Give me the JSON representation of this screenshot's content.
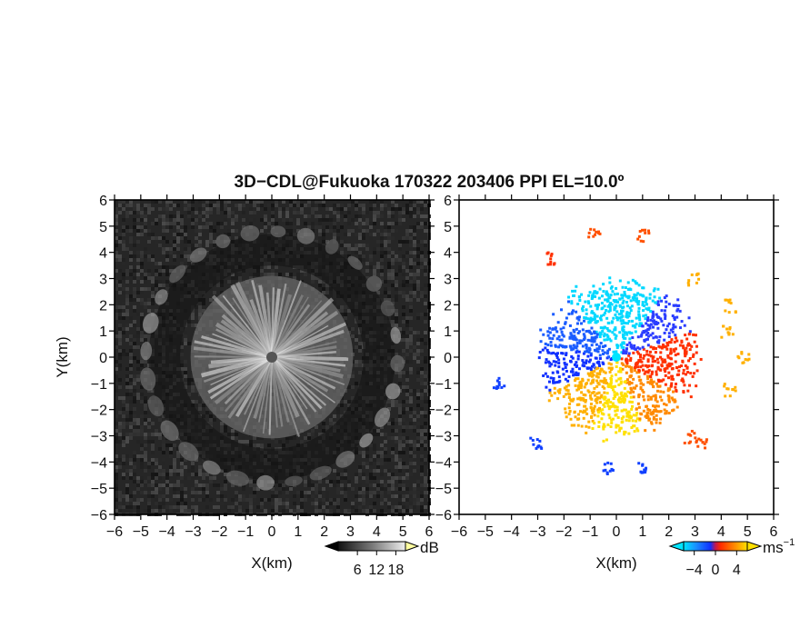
{
  "title": "3D−CDL@Fukuoka 170322 203406 PPI EL=10.0º",
  "chart_data": [
    {
      "type": "heatmap",
      "panel": "left",
      "quantity": "SNR",
      "colormap": "grayscale",
      "xlabel": "X(km)",
      "ylabel": "Y(km)",
      "xlim": [
        -6,
        6
      ],
      "ylim": [
        -6,
        6
      ],
      "xticks": [
        -6,
        -5,
        -4,
        -3,
        -2,
        -1,
        0,
        1,
        2,
        3,
        4,
        5,
        6
      ],
      "yticks": [
        -6,
        -5,
        -4,
        -3,
        -2,
        -1,
        0,
        1,
        2,
        3,
        4,
        5,
        6
      ],
      "tick_labels": [
        "−6",
        "−5",
        "−4",
        "−3",
        "−2",
        "−1",
        "0",
        "1",
        "2",
        "3",
        "4",
        "5",
        "6"
      ],
      "inner_echo_radius_km": 3.1,
      "outer_ring_radius_km": 4.8,
      "colorbar": {
        "unit": "dB",
        "ticks": [
          "6",
          "12",
          "18"
        ],
        "range": [
          0,
          21
        ]
      }
    },
    {
      "type": "heatmap",
      "panel": "right",
      "quantity": "radial velocity",
      "colormap": "cyan-blue-red-orange-yellow",
      "xlabel": "X(km)",
      "xlim": [
        -6,
        6
      ],
      "ylim": [
        -6,
        6
      ],
      "xticks": [
        -6,
        -5,
        -4,
        -3,
        -2,
        -1,
        0,
        1,
        2,
        3,
        4,
        5,
        6
      ],
      "yticks": [
        -6,
        -5,
        -4,
        -3,
        -2,
        -1,
        0,
        1,
        2,
        3,
        4,
        5,
        6
      ],
      "tick_labels": [
        "−6",
        "−5",
        "−4",
        "−3",
        "−2",
        "−1",
        "0",
        "1",
        "2",
        "3",
        "4",
        "5",
        "6"
      ],
      "inner_echo_radius_km": 3.1,
      "colorbar": {
        "unit": "ms",
        "unit_exp": "−1",
        "ticks": [
          "−4",
          "0",
          "4"
        ],
        "range": [
          -6,
          6
        ]
      }
    }
  ],
  "colors": {
    "cyan": "#00e5ff",
    "blue": "#1040ff",
    "red": "#ff2a00",
    "orange": "#ff8a00",
    "yellow": "#ffe000"
  }
}
